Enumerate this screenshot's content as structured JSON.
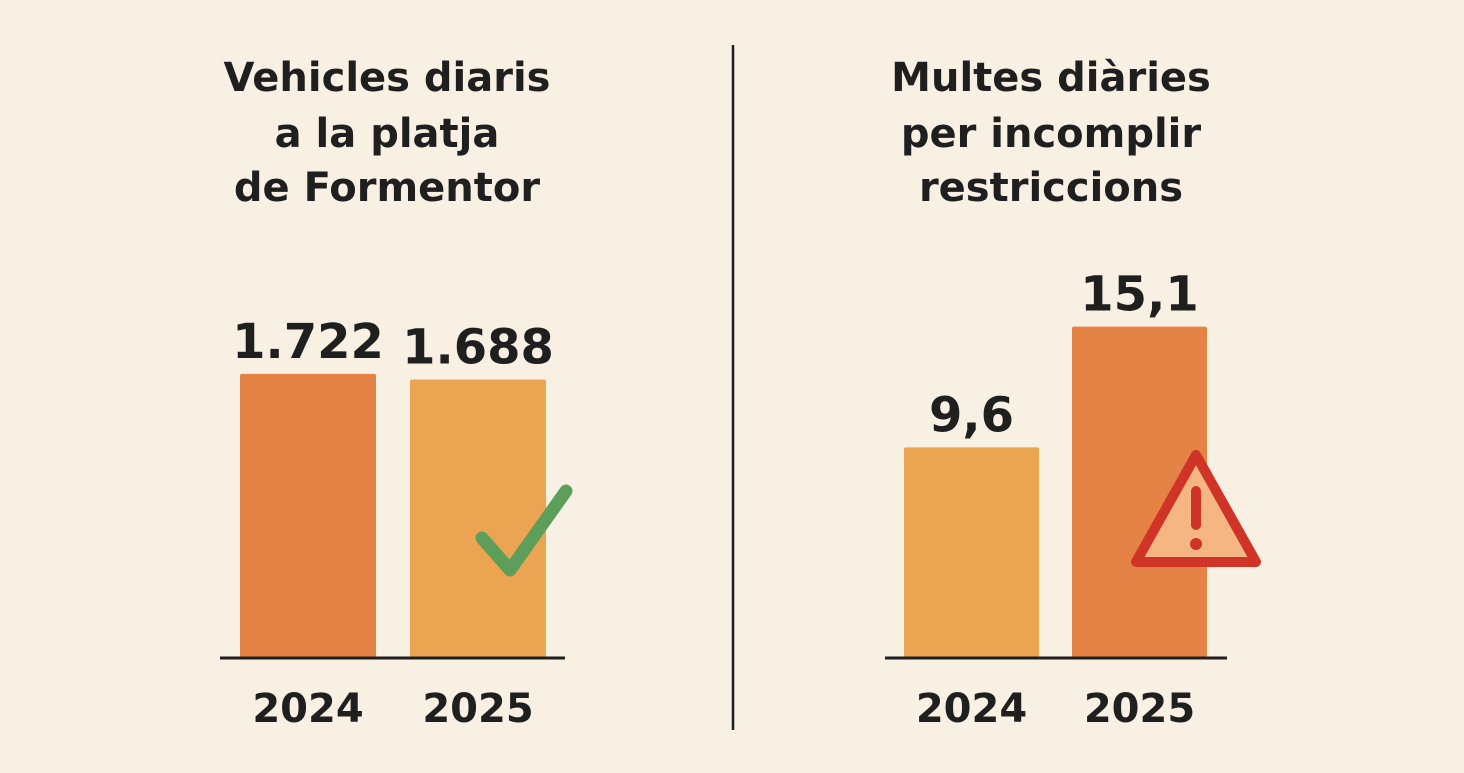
{
  "colors": {
    "background": "#f8f0e2",
    "bar_dark": "#e58246",
    "bar_light": "#eba452",
    "text": "#1f1f1f",
    "axis": "#1f1f1f",
    "check": "#5c9e5a",
    "warning_stroke": "#cf3427",
    "warning_fill": "#f6b684"
  },
  "chart_data": [
    {
      "type": "bar",
      "title_lines": [
        "Vehicles diaris",
        "a la platja",
        "de Formentor"
      ],
      "categories": [
        "2024",
        "2025"
      ],
      "values": [
        1722,
        1688
      ],
      "value_labels": [
        "1.722",
        "1.688"
      ],
      "bar_colors": [
        "bar_dark",
        "bar_light"
      ],
      "ylim": [
        0,
        2000
      ],
      "grid": false,
      "annotation": {
        "icon": "check-icon",
        "category": "2025"
      }
    },
    {
      "type": "bar",
      "title_lines": [
        "Multes diàries",
        "per incomplir",
        "restriccions"
      ],
      "categories": [
        "2024",
        "2025"
      ],
      "values": [
        9.6,
        15.1
      ],
      "value_labels": [
        "9,6",
        "15,1"
      ],
      "bar_colors": [
        "bar_light",
        "bar_dark"
      ],
      "ylim": [
        0,
        17.5
      ],
      "grid": false,
      "annotation": {
        "icon": "warning-icon",
        "category": "2025"
      }
    }
  ]
}
